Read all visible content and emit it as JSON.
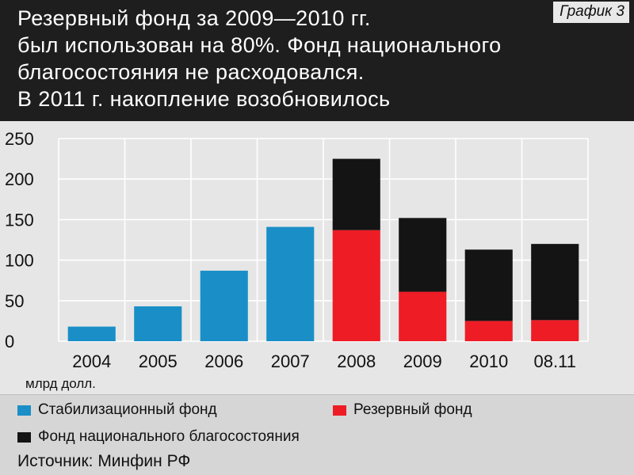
{
  "header": {
    "title": "Резервный фонд за 2009—2010 гг.\nбыл использован на 80%. Фонд национального\nблагосостояния не расходовался.\nВ 2011 г. накопление возобновилось",
    "badge": "График 3"
  },
  "chart_data": {
    "type": "bar",
    "stacked": true,
    "categories": [
      "2004",
      "2005",
      "2006",
      "2007",
      "2008",
      "2009",
      "2010",
      "08.11"
    ],
    "series": [
      {
        "name": "Стабилизационный фонд",
        "color": "#1a8fc7",
        "values": [
          18,
          43,
          87,
          141,
          0,
          0,
          0,
          0
        ]
      },
      {
        "name": "Резервный фонд",
        "color": "#ee1c25",
        "values": [
          0,
          0,
          0,
          0,
          137,
          61,
          25,
          26
        ]
      },
      {
        "name": "Фонд национального благосостояния",
        "color": "#141414",
        "values": [
          0,
          0,
          0,
          0,
          88,
          91,
          88,
          94
        ]
      }
    ],
    "ylim": [
      0,
      250
    ],
    "yticks": [
      0,
      50,
      100,
      150,
      200,
      250
    ],
    "ylabel": "млрд долл.",
    "grid": true,
    "legend_position": "bottom"
  },
  "legend": {
    "items": [
      {
        "label": "Стабилизационный фонд",
        "color": "#1a8fc7"
      },
      {
        "label": "Резервный фонд",
        "color": "#ee1c25"
      },
      {
        "label": "Фонд национального благосостояния",
        "color": "#141414"
      }
    ]
  },
  "source": "Источник: Минфин РФ"
}
